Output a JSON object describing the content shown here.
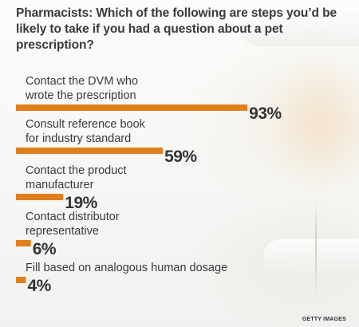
{
  "title": "Pharmacists: Which of the following are steps you’d be likely to take if you had a question about a pet prescription?",
  "credit": "GETTY IMAGES",
  "colors": {
    "bar": "#e07f1c",
    "label": "#3a3a3a",
    "value": "#333333"
  },
  "chart_data": {
    "type": "bar",
    "orientation": "horizontal",
    "unit": "%",
    "categories": [
      [
        "Contact the DVM who",
        "wrote the prescription"
      ],
      [
        "Consult reference book",
        "for industry standard"
      ],
      [
        "Contact the product",
        "manufacturer"
      ],
      [
        "Contact distributor",
        "representative"
      ],
      [
        "Fill based on analogous human dosage"
      ]
    ],
    "values": [
      93,
      59,
      19,
      6,
      4
    ],
    "value_labels": [
      "93%",
      "59%",
      "19%",
      "6%",
      "4%"
    ]
  }
}
